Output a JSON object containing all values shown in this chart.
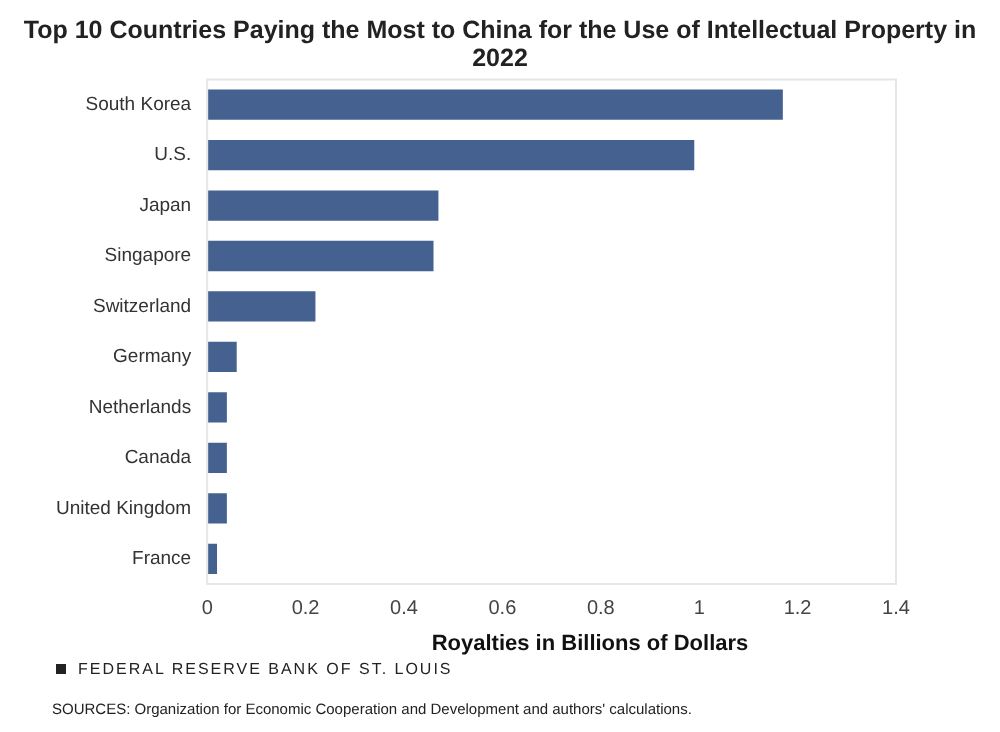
{
  "chart_data": {
    "type": "bar",
    "orientation": "horizontal",
    "title": "Top 10 Countries Paying the Most to China for the Use of Intellectual Property in 2022",
    "xlabel": "Royalties in Billions of Dollars",
    "categories": [
      "South Korea",
      "U.S.",
      "Japan",
      "Singapore",
      "Switzerland",
      "Germany",
      "Netherlands",
      "Canada",
      "United Kingdom",
      "France"
    ],
    "values": [
      1.17,
      0.99,
      0.47,
      0.46,
      0.22,
      0.06,
      0.04,
      0.04,
      0.04,
      0.02
    ],
    "color": "#44618f",
    "xlim": [
      0,
      1.4
    ],
    "xticks": [
      0,
      0.2,
      0.4,
      0.6,
      0.8,
      1,
      1.2,
      1.4
    ],
    "grid": false,
    "legend": false,
    "annotations": [
      "FEDERAL RESERVE BANK OF ST. LOUIS",
      "SOURCES: Organization for Economic Cooperation and Development and authors' calculations."
    ]
  }
}
